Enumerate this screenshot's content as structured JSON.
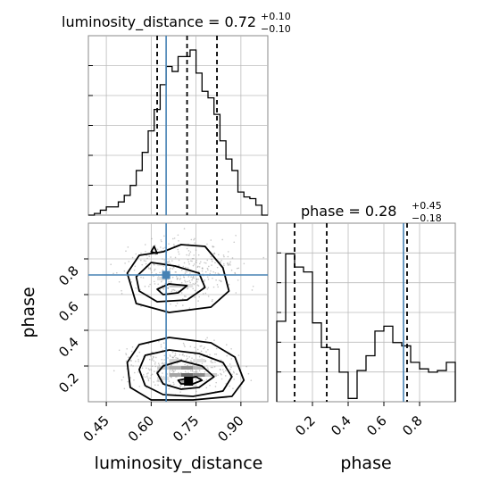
{
  "chart_data": {
    "type": "corner",
    "parameters": [
      "luminosity_distance",
      "phase"
    ],
    "colors": {
      "truth": "#4682b4",
      "hist": "#000000",
      "points": "#9a9a9a",
      "grid": "#bbbbbb"
    },
    "truth": {
      "luminosity_distance": 0.65,
      "phase": 0.71
    },
    "luminosity_distance": {
      "title_prefix": "luminosity_distance = 0.72",
      "title_sup": "+0.10",
      "title_sub": "−0.10",
      "xlabel": "luminosity_distance",
      "xlim": [
        0.39,
        0.99
      ],
      "ticks": [
        "0.45",
        "0.60",
        "0.75",
        "0.90"
      ],
      "tick_values": [
        0.45,
        0.6,
        0.75,
        0.9
      ],
      "quantiles": [
        0.62,
        0.72,
        0.82
      ],
      "hist_ylim": [
        0,
        1
      ],
      "hist_edges": [
        0.39,
        0.41,
        0.43,
        0.45,
        0.47,
        0.49,
        0.51,
        0.53,
        0.55,
        0.57,
        0.59,
        0.61,
        0.63,
        0.65,
        0.67,
        0.69,
        0.71,
        0.73,
        0.75,
        0.77,
        0.79,
        0.81,
        0.83,
        0.85,
        0.87,
        0.89,
        0.91,
        0.93,
        0.95,
        0.97,
        0.99
      ],
      "hist_counts": [
        0.0,
        0.01,
        0.03,
        0.05,
        0.05,
        0.08,
        0.12,
        0.18,
        0.27,
        0.38,
        0.51,
        0.64,
        0.79,
        0.9,
        0.87,
        0.96,
        0.96,
        1.0,
        0.86,
        0.75,
        0.71,
        0.61,
        0.45,
        0.34,
        0.27,
        0.14,
        0.11,
        0.1,
        0.06,
        0.0
      ]
    },
    "phase": {
      "title_prefix": "phase = 0.28",
      "title_sup": "+0.45",
      "title_sub": "−0.18",
      "xlabel": "phase",
      "xlim": [
        0.0,
        1.0
      ],
      "ticks": [
        "0.2",
        "0.4",
        "0.6",
        "0.8"
      ],
      "tick_values": [
        0.2,
        0.4,
        0.6,
        0.8
      ],
      "quantiles": [
        0.1,
        0.28,
        0.73
      ],
      "hist_ylim": [
        0,
        1
      ],
      "hist_edges": [
        0.0,
        0.05,
        0.1,
        0.15,
        0.2,
        0.25,
        0.3,
        0.35,
        0.4,
        0.45,
        0.5,
        0.55,
        0.6,
        0.65,
        0.7,
        0.75,
        0.8,
        0.85,
        0.9,
        0.95,
        1.0
      ],
      "hist_counts": [
        0.49,
        0.9,
        0.82,
        0.79,
        0.48,
        0.33,
        0.32,
        0.18,
        0.02,
        0.19,
        0.28,
        0.43,
        0.46,
        0.36,
        0.34,
        0.24,
        0.2,
        0.18,
        0.19,
        0.24
      ]
    },
    "joint": {
      "xlabel": "luminosity_distance",
      "ylabel": "phase",
      "xlim": [
        0.39,
        0.99
      ],
      "ylim": [
        0.0,
        1.0
      ],
      "yticks": [
        "0.2",
        "0.4",
        "0.6",
        "0.8"
      ],
      "ytick_values": [
        0.2,
        0.4,
        0.6,
        0.8
      ],
      "density_cells": [
        [
          0.66,
          0.14,
          0.04,
          0.02,
          0.45
        ],
        [
          0.7,
          0.14,
          0.04,
          0.02,
          0.75
        ],
        [
          0.74,
          0.14,
          0.04,
          0.02,
          0.6
        ],
        [
          0.7,
          0.1,
          0.04,
          0.02,
          0.45
        ],
        [
          0.62,
          0.18,
          0.04,
          0.02,
          0.25
        ],
        [
          0.66,
          0.18,
          0.04,
          0.02,
          0.4
        ],
        [
          0.7,
          0.18,
          0.04,
          0.02,
          0.55
        ],
        [
          0.74,
          0.18,
          0.04,
          0.02,
          0.35
        ],
        [
          0.62,
          0.12,
          0.04,
          0.02,
          0.15
        ],
        [
          0.78,
          0.14,
          0.04,
          0.02,
          0.25
        ],
        [
          0.66,
          0.22,
          0.04,
          0.02,
          0.2
        ],
        [
          0.74,
          0.22,
          0.04,
          0.02,
          0.15
        ],
        [
          0.62,
          0.68,
          0.04,
          0.02,
          0.15
        ],
        [
          0.66,
          0.64,
          0.04,
          0.02,
          0.25
        ],
        [
          0.7,
          0.64,
          0.04,
          0.02,
          0.15
        ],
        [
          0.62,
          0.76,
          0.04,
          0.02,
          0.12
        ]
      ],
      "contours": [
        [
          [
            0.72,
            0.13
          ],
          [
            0.69,
            0.12
          ],
          [
            0.7,
            0.1
          ],
          [
            0.74,
            0.1
          ],
          [
            0.77,
            0.12
          ],
          [
            0.75,
            0.14
          ]
        ],
        [
          [
            0.62,
            0.16
          ],
          [
            0.64,
            0.2
          ],
          [
            0.7,
            0.23
          ],
          [
            0.77,
            0.2
          ],
          [
            0.81,
            0.14
          ],
          [
            0.76,
            0.08
          ],
          [
            0.7,
            0.07
          ],
          [
            0.64,
            0.1
          ]
        ],
        [
          [
            0.56,
            0.18
          ],
          [
            0.58,
            0.26
          ],
          [
            0.66,
            0.29
          ],
          [
            0.76,
            0.27
          ],
          [
            0.84,
            0.22
          ],
          [
            0.87,
            0.14
          ],
          [
            0.84,
            0.06
          ],
          [
            0.74,
            0.03
          ],
          [
            0.64,
            0.04
          ],
          [
            0.58,
            0.09
          ]
        ],
        [
          [
            0.52,
            0.22
          ],
          [
            0.56,
            0.32
          ],
          [
            0.66,
            0.36
          ],
          [
            0.8,
            0.33
          ],
          [
            0.88,
            0.25
          ],
          [
            0.91,
            0.12
          ],
          [
            0.87,
            0.03
          ],
          [
            0.74,
            0.01
          ],
          [
            0.6,
            0.01
          ],
          [
            0.53,
            0.08
          ]
        ],
        [
          [
            0.62,
            0.63
          ],
          [
            0.66,
            0.66
          ],
          [
            0.72,
            0.65
          ],
          [
            0.69,
            0.61
          ],
          [
            0.64,
            0.6
          ]
        ],
        [
          [
            0.55,
            0.7
          ],
          [
            0.6,
            0.78
          ],
          [
            0.68,
            0.76
          ],
          [
            0.76,
            0.72
          ],
          [
            0.78,
            0.64
          ],
          [
            0.72,
            0.57
          ],
          [
            0.62,
            0.56
          ],
          [
            0.56,
            0.62
          ]
        ],
        [
          [
            0.52,
            0.72
          ],
          [
            0.56,
            0.82
          ],
          [
            0.64,
            0.84
          ],
          [
            0.7,
            0.88
          ],
          [
            0.78,
            0.87
          ],
          [
            0.84,
            0.75
          ],
          [
            0.86,
            0.62
          ],
          [
            0.8,
            0.53
          ],
          [
            0.66,
            0.5
          ],
          [
            0.55,
            0.55
          ]
        ],
        [
          [
            0.6,
            0.84
          ],
          [
            0.61,
            0.87
          ],
          [
            0.62,
            0.83
          ]
        ]
      ],
      "point_bounds": [
        [
          0.44,
          0.0,
          0.99,
          0.39
        ],
        [
          0.44,
          0.47,
          0.99,
          1.0
        ]
      ],
      "point_count": 700
    }
  }
}
